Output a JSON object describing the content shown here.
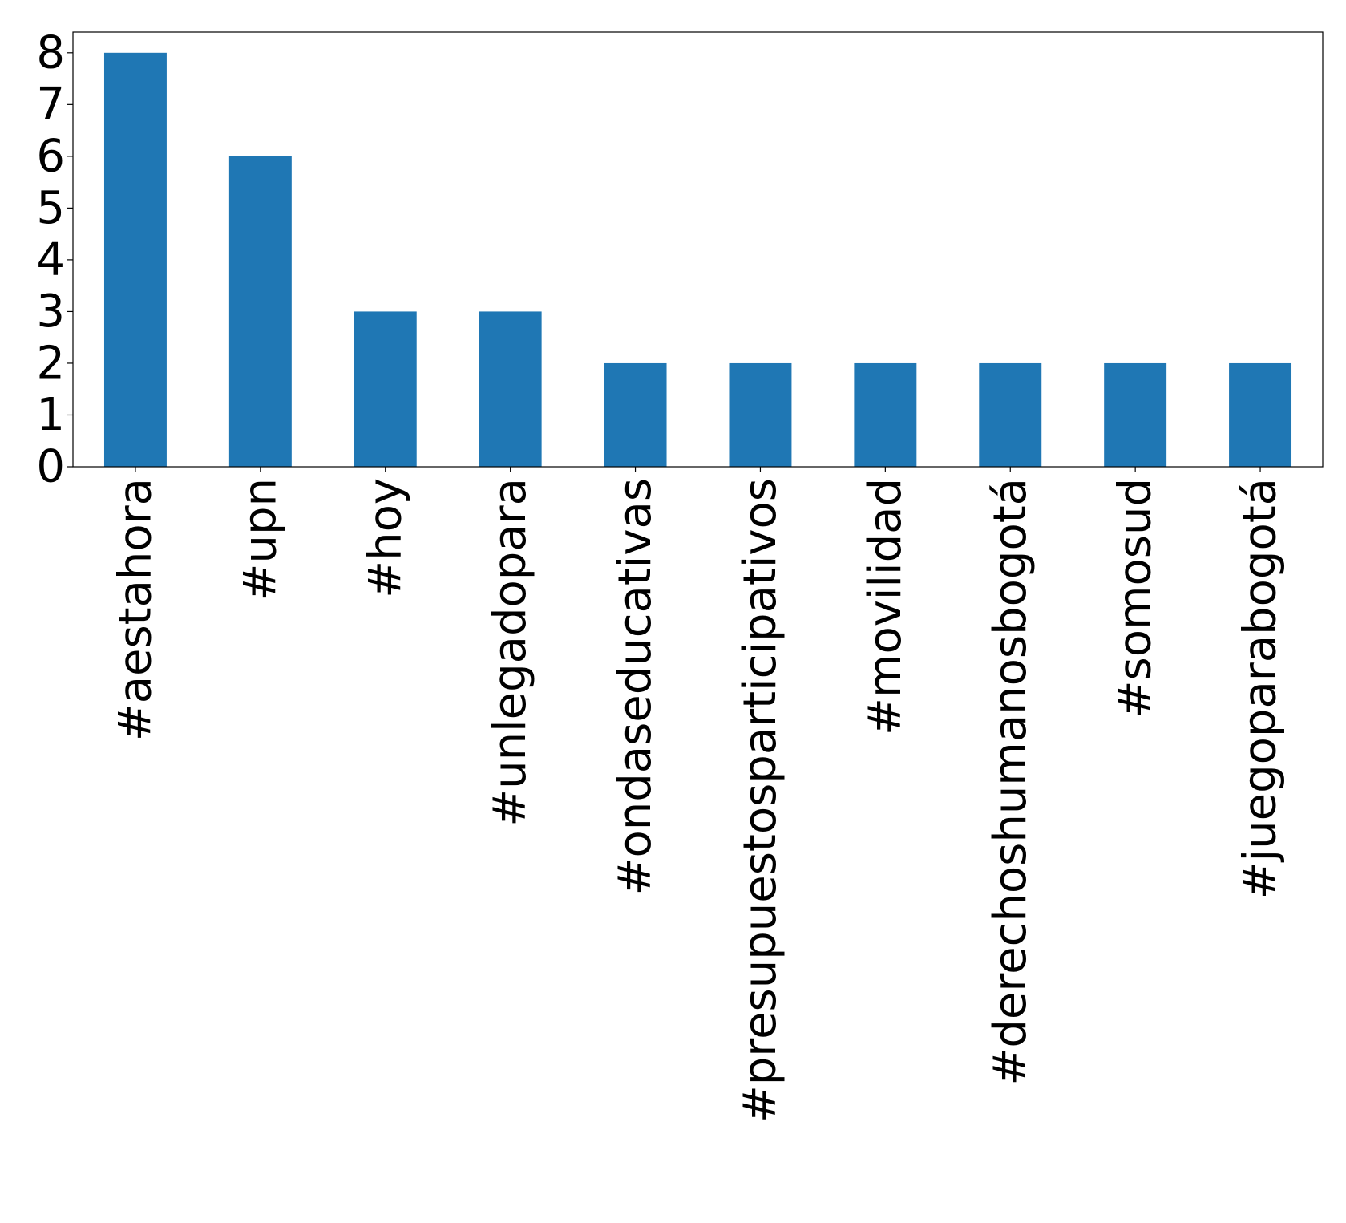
{
  "chart_data": {
    "type": "bar",
    "title": "",
    "xlabel": "",
    "ylabel": "",
    "categories": [
      "#aestahora",
      "#upn",
      "#hoy",
      "#unlegadopara",
      "#ondaseducativas",
      "#presupuestosparticipativos",
      "#movilidad",
      "#derechoshumanosbogotá",
      "#somosud",
      "#juegoparabogotá"
    ],
    "values": [
      8,
      6,
      3,
      3,
      2,
      2,
      2,
      2,
      2,
      2
    ],
    "ylim": [
      0,
      8.4
    ],
    "yticks": [
      "0",
      "1",
      "2",
      "3",
      "4",
      "5",
      "6",
      "7",
      "8"
    ],
    "grid": false,
    "legend": "none",
    "bar_color": "#1f77b4",
    "x_tick_rotation": "vertical"
  }
}
